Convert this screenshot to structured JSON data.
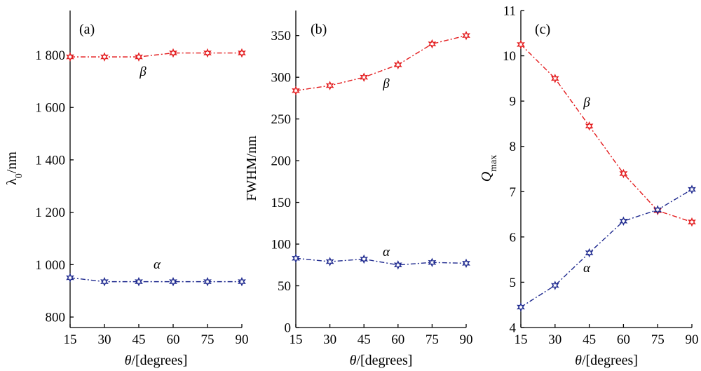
{
  "chart_data": [
    {
      "type": "line",
      "panel_label": "(a)",
      "xlabel": "θ/[degrees]",
      "ylabel": "λ0/nm",
      "x": [
        15,
        30,
        45,
        60,
        75,
        90
      ],
      "x_ticks": [
        "15",
        "30",
        "45",
        "60",
        "75",
        "90"
      ],
      "ylim": [
        760,
        1970
      ],
      "y_ticks": [
        {
          "value": 800,
          "label": "800"
        },
        {
          "value": 1000,
          "label": "1 000"
        },
        {
          "value": 1200,
          "label": "1 200"
        },
        {
          "value": 1400,
          "label": "1 400"
        },
        {
          "value": 1600,
          "label": "1 600"
        },
        {
          "value": 1800,
          "label": "1 800"
        }
      ],
      "grid": false,
      "series": [
        {
          "name": "β",
          "color": "#e31a1c",
          "values": [
            1793,
            1793,
            1793,
            1808,
            1808,
            1808
          ]
        },
        {
          "name": "α",
          "color": "#1f2a8f",
          "values": [
            950,
            935,
            935,
            935,
            935,
            935
          ]
        }
      ]
    },
    {
      "type": "line",
      "panel_label": "(b)",
      "xlabel": "θ/[degrees]",
      "ylabel": "FWHM/nm",
      "x": [
        15,
        30,
        45,
        60,
        75,
        90
      ],
      "x_ticks": [
        "15",
        "30",
        "45",
        "60",
        "75",
        "90"
      ],
      "ylim": [
        0,
        380
      ],
      "y_ticks": [
        {
          "value": 0,
          "label": "0"
        },
        {
          "value": 50,
          "label": "50"
        },
        {
          "value": 100,
          "label": "100"
        },
        {
          "value": 150,
          "label": "150"
        },
        {
          "value": 200,
          "label": "200"
        },
        {
          "value": 250,
          "label": "250"
        },
        {
          "value": 300,
          "label": "300"
        },
        {
          "value": 350,
          "label": "350"
        }
      ],
      "grid": false,
      "series": [
        {
          "name": "β",
          "color": "#e31a1c",
          "values": [
            284,
            290,
            300,
            315,
            340,
            350
          ]
        },
        {
          "name": "α",
          "color": "#1f2a8f",
          "values": [
            83,
            79,
            82,
            75,
            78,
            77
          ]
        }
      ]
    },
    {
      "type": "line",
      "panel_label": "(c)",
      "xlabel": "θ/[degrees]",
      "ylabel": "Qmax",
      "x": [
        15,
        30,
        45,
        60,
        75,
        90
      ],
      "x_ticks": [
        "15",
        "30",
        "45",
        "60",
        "75",
        "90"
      ],
      "ylim": [
        4,
        11
      ],
      "y_ticks": [
        {
          "value": 4,
          "label": "4"
        },
        {
          "value": 5,
          "label": "5"
        },
        {
          "value": 6,
          "label": "6"
        },
        {
          "value": 7,
          "label": "7"
        },
        {
          "value": 8,
          "label": "8"
        },
        {
          "value": 9,
          "label": "9"
        },
        {
          "value": 10,
          "label": "10"
        },
        {
          "value": 11,
          "label": "11"
        }
      ],
      "grid": false,
      "series": [
        {
          "name": "β",
          "color": "#e31a1c",
          "values": [
            10.25,
            9.5,
            8.45,
            7.4,
            6.58,
            6.33
          ]
        },
        {
          "name": "α",
          "color": "#1f2a8f",
          "values": [
            4.45,
            4.93,
            5.65,
            6.35,
            6.6,
            7.05
          ]
        }
      ]
    }
  ]
}
